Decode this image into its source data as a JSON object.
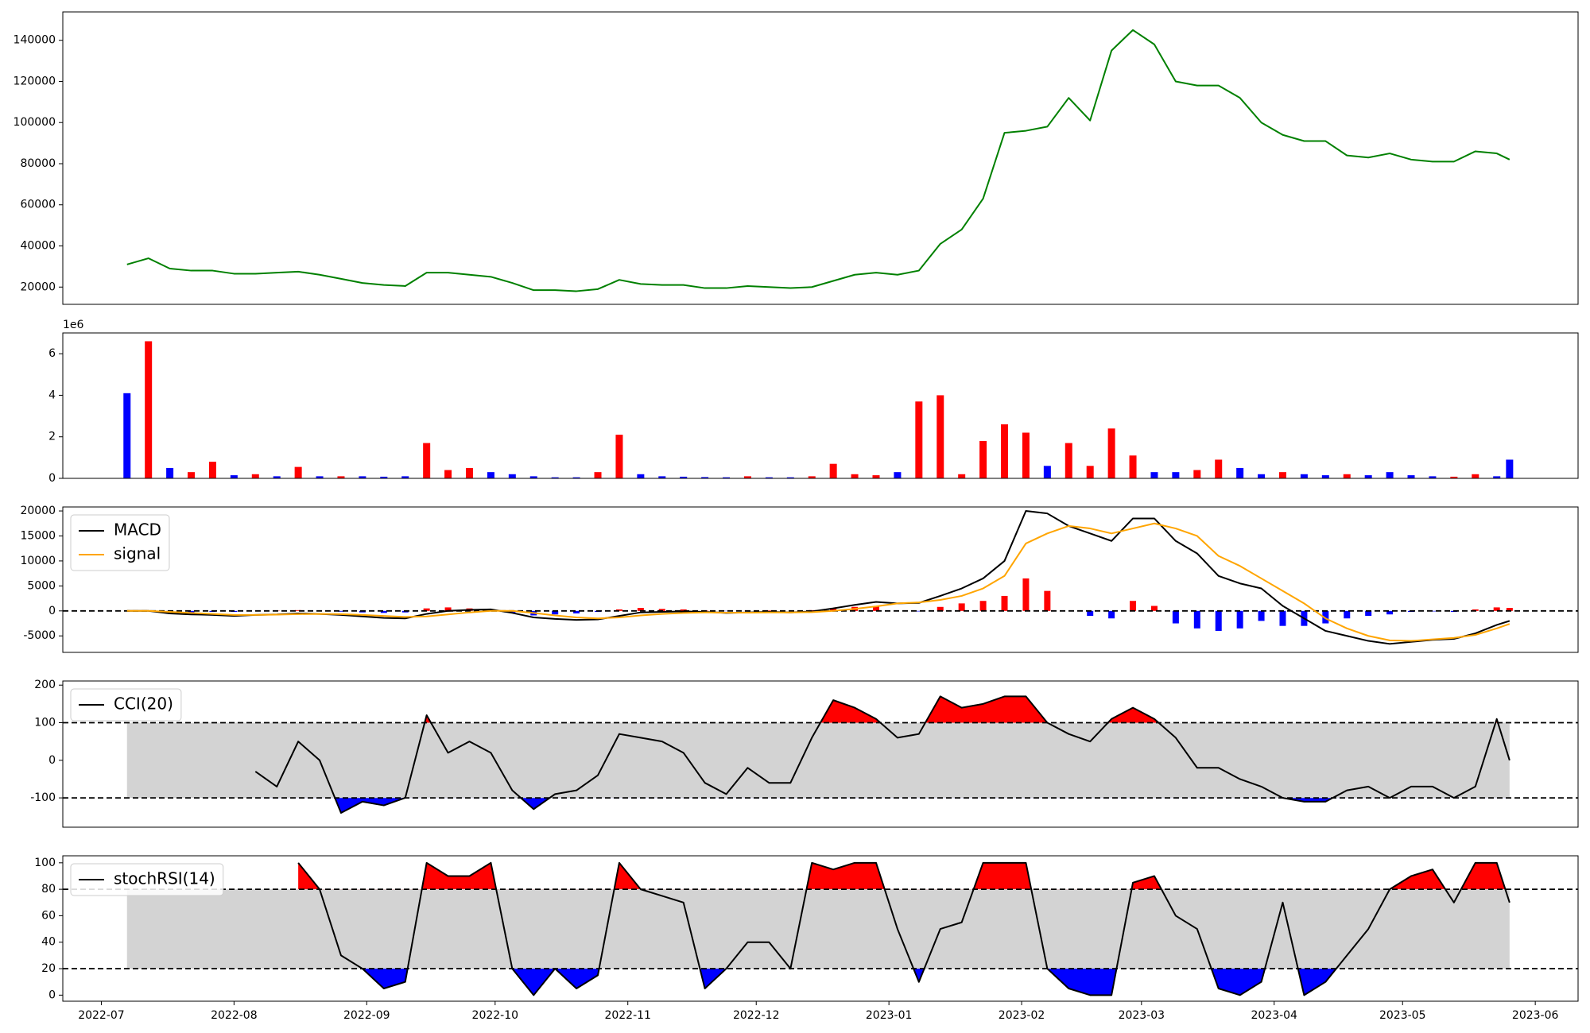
{
  "chart_data": [
    {
      "type": "line",
      "color": "green",
      "x": [
        "2022-07-07",
        "2022-07-12",
        "2022-07-17",
        "2022-07-22",
        "2022-07-27",
        "2022-08-01",
        "2022-08-06",
        "2022-08-11",
        "2022-08-16",
        "2022-08-21",
        "2022-08-26",
        "2022-08-31",
        "2022-09-05",
        "2022-09-10",
        "2022-09-15",
        "2022-09-20",
        "2022-09-25",
        "2022-09-30",
        "2022-10-05",
        "2022-10-10",
        "2022-10-15",
        "2022-10-20",
        "2022-10-25",
        "2022-10-30",
        "2022-11-04",
        "2022-11-09",
        "2022-11-14",
        "2022-11-19",
        "2022-11-24",
        "2022-11-29",
        "2022-12-04",
        "2022-12-09",
        "2022-12-14",
        "2022-12-19",
        "2022-12-24",
        "2022-12-29",
        "2023-01-03",
        "2023-01-08",
        "2023-01-13",
        "2023-01-18",
        "2023-01-23",
        "2023-01-28",
        "2023-02-02",
        "2023-02-07",
        "2023-02-12",
        "2023-02-17",
        "2023-02-22",
        "2023-02-27",
        "2023-03-04",
        "2023-03-09",
        "2023-03-14",
        "2023-03-19",
        "2023-03-24",
        "2023-03-29",
        "2023-04-03",
        "2023-04-08",
        "2023-04-13",
        "2023-04-18",
        "2023-04-23",
        "2023-04-28",
        "2023-05-03",
        "2023-05-08",
        "2023-05-13",
        "2023-05-18",
        "2023-05-23",
        "2023-05-26"
      ],
      "values": [
        31000,
        34000,
        29000,
        28000,
        28000,
        26500,
        26500,
        27000,
        27500,
        26000,
        24000,
        22000,
        21000,
        20500,
        27000,
        27000,
        26000,
        25000,
        22000,
        18500,
        18500,
        18000,
        19000,
        23500,
        21500,
        21000,
        21000,
        19500,
        19500,
        20500,
        20000,
        19500,
        20000,
        23000,
        26000,
        27000,
        26000,
        28000,
        41000,
        48000,
        63000,
        95000,
        96000,
        98000,
        112000,
        101000,
        135000,
        145000,
        138000,
        120000,
        118000,
        118000,
        112000,
        100000,
        94000,
        91000,
        91000,
        84000,
        83000,
        85000,
        82000,
        81000,
        81000,
        86000,
        85000,
        82000
      ],
      "ylim": [
        11600,
        153800
      ],
      "yticks": [
        20000,
        40000,
        60000,
        80000,
        100000,
        120000,
        140000
      ]
    },
    {
      "type": "bar",
      "offset_label": "1e6",
      "values": [
        4100000,
        6600000,
        500000,
        300000,
        800000,
        150000,
        200000,
        100000,
        550000,
        100000,
        100000,
        100000,
        80000,
        100000,
        1700000,
        400000,
        500000,
        300000,
        200000,
        100000,
        50000,
        50000,
        300000,
        2100000,
        200000,
        100000,
        80000,
        60000,
        50000,
        100000,
        50000,
        50000,
        100000,
        700000,
        200000,
        150000,
        300000,
        3700000,
        4000000,
        200000,
        1800000,
        2600000,
        2200000,
        600000,
        1700000,
        600000,
        2400000,
        1100000,
        300000,
        300000,
        400000,
        900000,
        500000,
        200000,
        300000,
        200000,
        150000,
        200000,
        150000,
        300000,
        150000,
        100000,
        80000,
        200000,
        100000,
        900000
      ],
      "colors": [
        "blue",
        "red",
        "blue",
        "red",
        "red",
        "blue",
        "red",
        "blue",
        "red",
        "blue",
        "red",
        "blue",
        "blue",
        "blue",
        "red",
        "red",
        "red",
        "blue",
        "blue",
        "blue",
        "blue",
        "blue",
        "red",
        "red",
        "blue",
        "blue",
        "blue",
        "blue",
        "blue",
        "red",
        "blue",
        "blue",
        "red",
        "red",
        "red",
        "red",
        "blue",
        "red",
        "red",
        "red",
        "red",
        "red",
        "red",
        "blue",
        "red",
        "red",
        "red",
        "red",
        "blue",
        "blue",
        "red",
        "red",
        "blue",
        "blue",
        "red",
        "blue",
        "blue",
        "red",
        "blue",
        "blue",
        "blue",
        "blue",
        "red",
        "red",
        "blue",
        "blue"
      ],
      "ylim": [
        0,
        7000000
      ],
      "yticks": [
        {
          "value": 0,
          "label": "0"
        },
        {
          "value": 2000000,
          "label": "2"
        },
        {
          "value": 4000000,
          "label": "4"
        },
        {
          "value": 6000000,
          "label": "6"
        }
      ]
    },
    {
      "type": "macd",
      "legend": "upper left",
      "levels": [
        0
      ],
      "series": [
        {
          "name": "MACD",
          "color": "black",
          "values": [
            0,
            0,
            -500,
            -700,
            -800,
            -1000,
            -800,
            -700,
            -500,
            -600,
            -800,
            -1100,
            -1400,
            -1500,
            -600,
            0,
            200,
            300,
            -400,
            -1300,
            -1600,
            -1800,
            -1700,
            -1000,
            -300,
            -200,
            -100,
            -200,
            -400,
            -300,
            -200,
            -300,
            -100,
            500,
            1200,
            1800,
            1500,
            1600,
            3000,
            4500,
            6500,
            10000,
            20000,
            19500,
            17000,
            15500,
            14000,
            18500,
            18500,
            14000,
            11500,
            7000,
            5500,
            4500,
            1000,
            -1500,
            -4000,
            -5000,
            -6000,
            -6600,
            -6200,
            -5800,
            -5600,
            -4500,
            -2800,
            -2000
          ]
        },
        {
          "name": "signal",
          "color": "orange",
          "values": [
            0,
            0,
            -200,
            -400,
            -600,
            -800,
            -800,
            -750,
            -650,
            -600,
            -650,
            -800,
            -1000,
            -1200,
            -1100,
            -700,
            -300,
            0,
            0,
            -400,
            -900,
            -1300,
            -1500,
            -1300,
            -900,
            -600,
            -400,
            -300,
            -350,
            -350,
            -300,
            -300,
            -250,
            0,
            400,
            900,
            1500,
            1700,
            2200,
            3000,
            4500,
            7000,
            13500,
            15500,
            17000,
            16500,
            15500,
            16500,
            17500,
            16500,
            15000,
            11000,
            9000,
            6500,
            4000,
            1500,
            -1500,
            -3500,
            -5000,
            -5900,
            -6000,
            -5700,
            -5400,
            -4800,
            -3500,
            -2600
          ]
        }
      ],
      "histogram": {
        "pos_color": "red",
        "neg_color": "blue",
        "values": [
          0,
          0,
          -300,
          -300,
          -200,
          -200,
          0,
          50,
          150,
          0,
          -150,
          -300,
          -400,
          -300,
          500,
          700,
          500,
          300,
          -400,
          -900,
          -700,
          -500,
          -200,
          300,
          600,
          400,
          300,
          100,
          -50,
          50,
          100,
          0,
          150,
          500,
          800,
          900,
          0,
          -100,
          800,
          1500,
          2000,
          3000,
          6500,
          4000,
          0,
          -1000,
          -1500,
          2000,
          1000,
          -2500,
          -3500,
          -4000,
          -3500,
          -2000,
          -3000,
          -3000,
          -2500,
          -1500,
          -1000,
          -700,
          -200,
          -100,
          -200,
          300,
          700,
          600
        ]
      },
      "ylim": [
        -8300,
        20800
      ],
      "yticks": [
        -5000,
        0,
        5000,
        10000,
        15000,
        20000
      ]
    },
    {
      "type": "oscillator",
      "legend": "upper left",
      "levels": [
        100,
        -100
      ],
      "above_color": "red",
      "below_color": "blue",
      "band_color": "lightgray",
      "series": [
        {
          "name": "CCI(20)",
          "color": "black",
          "values": [
            null,
            null,
            null,
            null,
            null,
            null,
            -30,
            -70,
            50,
            0,
            -140,
            -110,
            -120,
            -100,
            120,
            20,
            50,
            20,
            -80,
            -130,
            -90,
            -80,
            -40,
            70,
            60,
            50,
            20,
            -60,
            -90,
            -20,
            -60,
            -60,
            60,
            160,
            140,
            110,
            60,
            70,
            170,
            140,
            150,
            170,
            170,
            100,
            70,
            50,
            110,
            140,
            110,
            60,
            -20,
            -20,
            -50,
            -70,
            -100,
            -110,
            -110,
            -80,
            -70,
            -100,
            -70,
            -70,
            -100,
            -70,
            110,
            0
          ]
        }
      ],
      "ylim": [
        -178,
        211
      ],
      "yticks": [
        -100,
        0,
        100,
        200
      ]
    },
    {
      "type": "oscillator",
      "legend": "upper left",
      "levels": [
        80,
        20
      ],
      "above_color": "red",
      "below_color": "blue",
      "band_color": "lightgray",
      "series": [
        {
          "name": "stochRSI(14)",
          "color": "black",
          "values": [
            null,
            null,
            null,
            null,
            null,
            null,
            null,
            null,
            100,
            80,
            30,
            20,
            5,
            10,
            100,
            90,
            90,
            100,
            20,
            0,
            20,
            5,
            15,
            100,
            80,
            75,
            70,
            5,
            20,
            40,
            40,
            20,
            100,
            95,
            100,
            100,
            50,
            10,
            50,
            55,
            100,
            100,
            100,
            20,
            5,
            0,
            0,
            85,
            90,
            60,
            50,
            5,
            0,
            10,
            70,
            0,
            10,
            30,
            50,
            80,
            90,
            95,
            70,
            100,
            100,
            70
          ]
        }
      ],
      "ylim": [
        -4.6,
        105.3
      ],
      "yticks": [
        0,
        20,
        40,
        60,
        80,
        100
      ],
      "xlim": [
        "2022-06-22",
        "2023-06-11"
      ],
      "xticks": [
        "2022-07",
        "2022-08",
        "2022-09",
        "2022-10",
        "2022-11",
        "2022-12",
        "2023-01",
        "2023-02",
        "2023-03",
        "2023-04",
        "2023-05",
        "2023-06"
      ]
    }
  ]
}
